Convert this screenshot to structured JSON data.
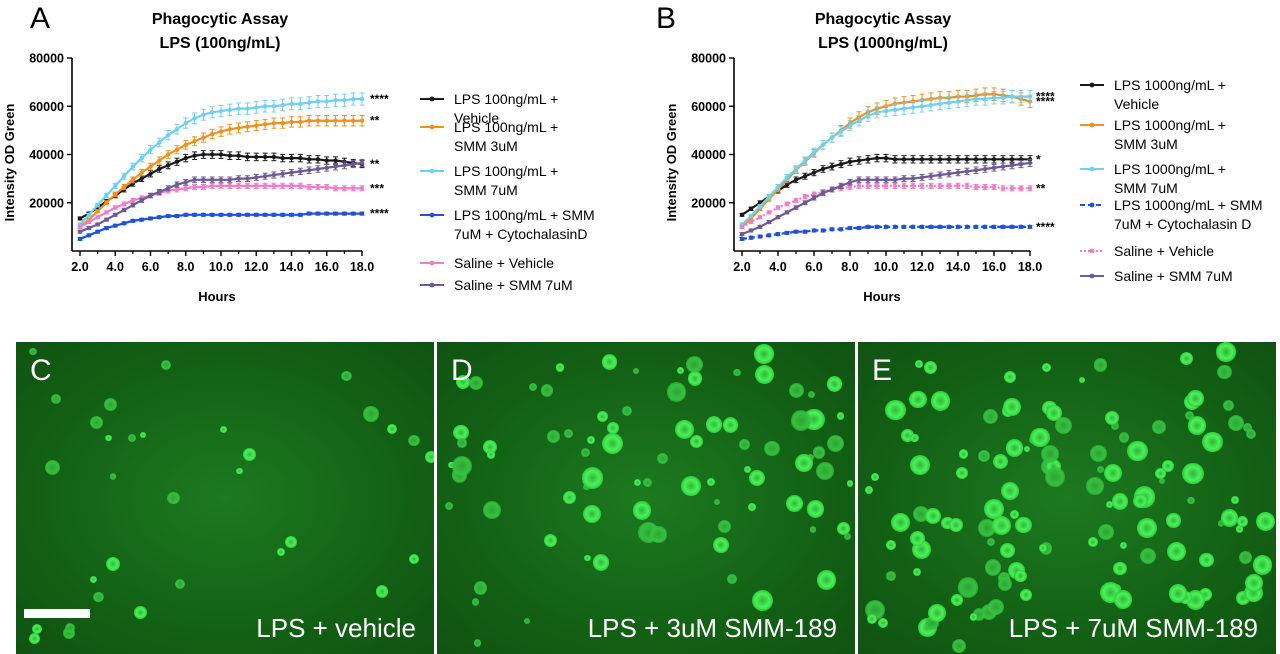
{
  "charts": [
    {
      "letter": "A",
      "title_line1": "Phagocytic Assay",
      "title_line2": "LPS (100ng/mL)",
      "chart_data": {
        "type": "line",
        "xlabel": "Hours",
        "ylabel": "Intensity OD Green",
        "xlim": [
          2,
          18
        ],
        "ylim": [
          0,
          80000
        ],
        "x_ticks": [
          "2.0",
          "4.0",
          "6.0",
          "8.0",
          "10.0",
          "12.0",
          "14.0",
          "16.0",
          "18.0"
        ],
        "y_ticks": [
          "20000",
          "40000",
          "60000",
          "80000"
        ],
        "x": [
          2,
          2.5,
          3,
          3.5,
          4,
          4.5,
          5,
          5.5,
          6,
          6.5,
          7,
          7.5,
          8,
          8.5,
          9,
          9.5,
          10,
          10.5,
          11,
          11.5,
          12,
          12.5,
          13,
          13.5,
          14,
          14.5,
          15,
          15.5,
          16,
          16.5,
          17,
          17.5,
          18
        ],
        "series": [
          {
            "name": "LPS 100ng/mL + Vehicle",
            "color": "#1a1a1a",
            "significance": "**",
            "values": [
              13500,
              15500,
              18000,
              20500,
              23000,
              25500,
              28000,
              30000,
              32000,
              34000,
              35500,
              37000,
              38500,
              39500,
              40000,
              40000,
              40000,
              39500,
              39500,
              39000,
              39000,
              39000,
              39000,
              38500,
              38500,
              38500,
              38000,
              38000,
              37500,
              37500,
              37000,
              36500,
              36000
            ]
          },
          {
            "name": "LPS 100ng/mL + SMM 3uM",
            "color": "#f0901e",
            "significance": "**",
            "values": [
              10000,
              13000,
              16500,
              20000,
              23500,
              26500,
              29500,
              32500,
              35000,
              37500,
              40000,
              42000,
              44000,
              45500,
              47000,
              48500,
              49500,
              50500,
              51000,
              51500,
              52000,
              52500,
              53000,
              53000,
              53500,
              53500,
              54000,
              54000,
              54000,
              54000,
              54000,
              54000,
              54000
            ]
          },
          {
            "name": "LPS 100ng/mL + SMM 7uM",
            "color": "#6fd0f2",
            "significance": "****",
            "values": [
              11000,
              15000,
              19000,
              23000,
              27000,
              31000,
              35000,
              38500,
              42000,
              45000,
              48000,
              50500,
              53000,
              55000,
              56500,
              57500,
              58000,
              58500,
              59000,
              59000,
              59500,
              60000,
              60000,
              60500,
              61000,
              61000,
              61500,
              62000,
              62000,
              62500,
              62500,
              63000,
              63000
            ]
          },
          {
            "name": "LPS 100ng/mL + SMM 7uM + CytochalasinD",
            "color": "#1f52d8",
            "significance": "****",
            "values": [
              5000,
              6500,
              8000,
              9500,
              10500,
              11500,
              12500,
              13000,
              13500,
              14000,
              14500,
              14500,
              15000,
              15000,
              15000,
              15000,
              15000,
              15000,
              15000,
              15000,
              15000,
              15000,
              15000,
              15000,
              15000,
              15000,
              15500,
              15500,
              15500,
              15500,
              15500,
              15500,
              15500
            ]
          },
          {
            "name": "Saline + Vehicle",
            "color": "#ef7fc9",
            "significance": "***",
            "values": [
              10000,
              12000,
              14000,
              16000,
              18000,
              19500,
              21000,
              22000,
              23000,
              24000,
              25000,
              25500,
              26000,
              26500,
              26500,
              27000,
              27000,
              27000,
              27000,
              27000,
              27000,
              27000,
              27000,
              27000,
              27000,
              27000,
              26500,
              26500,
              26500,
              26000,
              26000,
              26000,
              26000
            ]
          },
          {
            "name": "Saline + SMM 7uM",
            "color": "#6d5a96",
            "significance": "",
            "values": [
              8000,
              9500,
              11000,
              13000,
              15000,
              17000,
              19000,
              21000,
              23000,
              24500,
              26000,
              27500,
              28500,
              29500,
              29500,
              29500,
              29500,
              29500,
              30000,
              30000,
              30500,
              31000,
              31500,
              32000,
              32500,
              33000,
              33500,
              34000,
              34500,
              35000,
              35500,
              36000,
              36500
            ]
          }
        ],
        "legend": [
          "LPS 100ng/mL + Vehicle",
          "LPS 100ng/mL + SMM 3uM",
          "LPS 100ng/mL + SMM 7uM",
          "LPS 100ng/mL + SMM 7uM + CytochalasinD",
          "Saline + Vehicle",
          "Saline + SMM 7uM"
        ],
        "legend_placement": "right"
      },
      "legend_lines": [
        [
          "LPS 100ng/mL +",
          "Vehicle"
        ],
        [
          "LPS 100ng/mL +",
          "SMM 3uM"
        ],
        [
          "LPS 100ng/mL +",
          "SMM 7uM"
        ],
        [
          "LPS 100ng/mL + SMM",
          "7uM + CytochalasinD"
        ],
        [
          "Saline + Vehicle"
        ],
        [
          "Saline + SMM 7uM"
        ]
      ]
    },
    {
      "letter": "B",
      "title_line1": "Phagocytic Assay",
      "title_line2": "LPS (1000ng/mL)",
      "chart_data": {
        "type": "line",
        "xlabel": "Hours",
        "ylabel": "Intensity OD Green",
        "xlim": [
          2,
          18
        ],
        "ylim": [
          0,
          80000
        ],
        "x_ticks": [
          "2.0",
          "4.0",
          "6.0",
          "8.0",
          "10.0",
          "12.0",
          "14.0",
          "16.0",
          "18.0"
        ],
        "y_ticks": [
          "20000",
          "40000",
          "60000",
          "80000"
        ],
        "x": [
          2,
          2.5,
          3,
          3.5,
          4,
          4.5,
          5,
          5.5,
          6,
          6.5,
          7,
          7.5,
          8,
          8.5,
          9,
          9.5,
          10,
          10.5,
          11,
          11.5,
          12,
          12.5,
          13,
          13.5,
          14,
          14.5,
          15,
          15.5,
          16,
          16.5,
          17,
          17.5,
          18
        ],
        "series": [
          {
            "name": "LPS 1000ng/mL + Vehicle",
            "color": "#1a1a1a",
            "significance": "*",
            "values": [
              15000,
              17500,
              20000,
              22500,
              25000,
              27500,
              29500,
              31000,
              32500,
              34000,
              35000,
              36000,
              37000,
              37500,
              38000,
              38500,
              38500,
              38000,
              38000,
              38000,
              38000,
              38000,
              38000,
              38000,
              38000,
              38000,
              38000,
              38000,
              38000,
              38000,
              38000,
              38000,
              38000
            ]
          },
          {
            "name": "LPS 1000ng/mL + SMM 3uM",
            "color": "#f0901e",
            "significance": "****",
            "values": [
              10000,
              13500,
              17500,
              21500,
              25500,
              29500,
              33500,
              37000,
              40500,
              44000,
              47000,
              50000,
              53000,
              55500,
              57500,
              59000,
              60000,
              61000,
              61500,
              62000,
              62500,
              63000,
              63500,
              63500,
              64000,
              64000,
              64500,
              65000,
              65000,
              64500,
              64000,
              63000,
              62000
            ]
          },
          {
            "name": "LPS 1000ng/mL + SMM 7uM",
            "color": "#6fd0f2",
            "significance": "****",
            "values": [
              11000,
              14500,
              18500,
              22500,
              26500,
              30500,
              34000,
              37500,
              41000,
              44000,
              47000,
              49500,
              52000,
              54000,
              56000,
              57500,
              58000,
              58500,
              59000,
              59500,
              60000,
              60500,
              61000,
              61500,
              62000,
              62500,
              63000,
              63000,
              63500,
              63500,
              64000,
              64000,
              64000
            ]
          },
          {
            "name": "LPS 1000ng/mL + SMM 7uM + Cytochalasin D",
            "color": "#1f52d8",
            "significance": "****",
            "values": [
              5000,
              5500,
              6000,
              6500,
              7000,
              7500,
              8000,
              8000,
              8500,
              8500,
              9000,
              9000,
              9500,
              9500,
              10000,
              10000,
              10000,
              10000,
              10000,
              10000,
              10000,
              10000,
              10000,
              10000,
              10000,
              10000,
              10000,
              10000,
              10000,
              10000,
              10000,
              10000,
              10000
            ]
          },
          {
            "name": "Saline + Vehicle",
            "color": "#ef7fc9",
            "significance": "**",
            "values": [
              10000,
              12000,
              14000,
              16000,
              18000,
              19500,
              21000,
              22500,
              23500,
              24500,
              25500,
              26000,
              26500,
              27000,
              27000,
              27000,
              27000,
              27000,
              27000,
              27000,
              27000,
              27000,
              27000,
              27000,
              27000,
              27000,
              26500,
              26500,
              26500,
              26000,
              26000,
              26000,
              26000
            ]
          },
          {
            "name": "Saline + SMM 7uM",
            "color": "#6d5a96",
            "significance": "",
            "values": [
              7000,
              8500,
              10000,
              12000,
              14000,
              16000,
              18000,
              20000,
              22000,
              24000,
              25500,
              27000,
              28500,
              29500,
              29500,
              29500,
              29500,
              29500,
              30000,
              30000,
              30500,
              31000,
              31500,
              32000,
              32500,
              33000,
              33500,
              34000,
              34500,
              35000,
              35500,
              36000,
              36500
            ]
          }
        ],
        "legend": [
          "LPS 1000ng/mL + Vehicle",
          "LPS 1000ng/mL + SMM 3uM",
          "LPS 1000ng/mL + SMM 7uM",
          "LPS 1000ng/mL + SMM 7uM + Cytochalasin D",
          "Saline + Vehicle",
          "Saline + SMM 7uM"
        ],
        "legend_placement": "right"
      },
      "legend_lines": [
        [
          "LPS 1000ng/mL +",
          "Vehicle"
        ],
        [
          "LPS 1000ng/mL +",
          "SMM 3uM"
        ],
        [
          "LPS 1000ng/mL +",
          "SMM 7uM"
        ],
        [
          "LPS 1000ng/mL + SMM",
          "7uM + Cytochalasin D"
        ],
        [
          "Saline + Vehicle"
        ],
        [
          "Saline + SMM 7uM"
        ]
      ]
    }
  ],
  "micrographs": [
    {
      "letter": "C",
      "caption": "LPS + vehicle",
      "scale_bar": true
    },
    {
      "letter": "D",
      "caption": "LPS + 3uM SMM-189",
      "scale_bar": false
    },
    {
      "letter": "E",
      "caption": "LPS + 7uM SMM-189",
      "scale_bar": false
    }
  ],
  "colors": {
    "background_green": "#136115",
    "cell_green": "#3fe54a"
  }
}
